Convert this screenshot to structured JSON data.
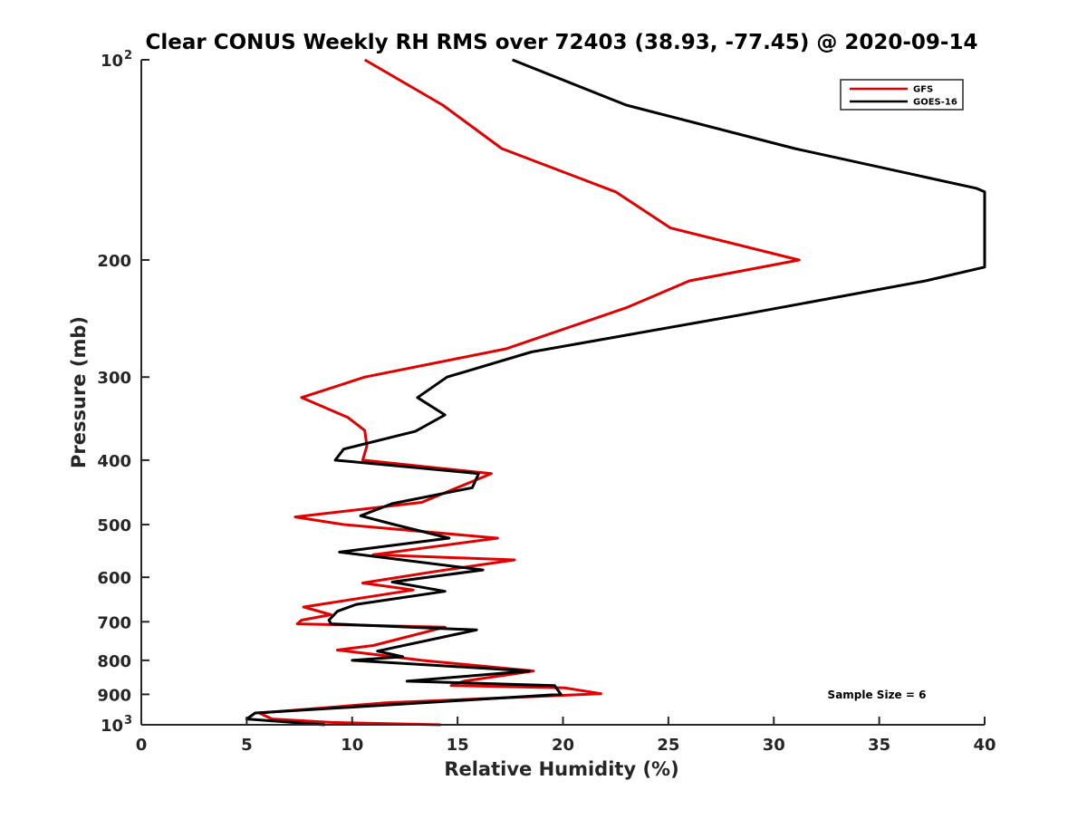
{
  "chart_data": {
    "type": "line",
    "title": "Clear CONUS Weekly RH RMS over 72403 (38.93, -77.45) @ 2020-09-14",
    "xlabel": "Relative Humidity (%)",
    "ylabel": "Pressure (mb)",
    "xlim": [
      0,
      40
    ],
    "ylim": [
      100,
      1000
    ],
    "y_scale": "log",
    "y_reversed": true,
    "x_ticks": [
      {
        "value": 0,
        "label": "0"
      },
      {
        "value": 5,
        "label": "5"
      },
      {
        "value": 10,
        "label": "10"
      },
      {
        "value": 15,
        "label": "15"
      },
      {
        "value": 20,
        "label": "20"
      },
      {
        "value": 25,
        "label": "25"
      },
      {
        "value": 30,
        "label": "30"
      },
      {
        "value": 35,
        "label": "35"
      },
      {
        "value": 40,
        "label": "40"
      }
    ],
    "y_ticks": [
      {
        "value": 100,
        "label": "10",
        "exp": "2"
      },
      {
        "value": 200,
        "label": "200"
      },
      {
        "value": 300,
        "label": "300"
      },
      {
        "value": 400,
        "label": "400"
      },
      {
        "value": 500,
        "label": "500"
      },
      {
        "value": 600,
        "label": "600"
      },
      {
        "value": 700,
        "label": "700"
      },
      {
        "value": 800,
        "label": "800"
      },
      {
        "value": 900,
        "label": "900"
      },
      {
        "value": 1000,
        "label": "10",
        "exp": "3"
      }
    ],
    "grid": false,
    "legend_position": "top-right",
    "annotation": "Sample Size = 6",
    "series": [
      {
        "name": "GFS",
        "color": "#e00000",
        "points": [
          [
            10.6,
            100
          ],
          [
            14.3,
            117
          ],
          [
            17.1,
            136
          ],
          [
            22.5,
            158
          ],
          [
            25.1,
            179
          ],
          [
            31.2,
            200
          ],
          [
            26.0,
            215
          ],
          [
            23.0,
            236
          ],
          [
            17.3,
            272
          ],
          [
            10.6,
            300
          ],
          [
            7.6,
            322
          ],
          [
            9.8,
            345
          ],
          [
            10.6,
            361
          ],
          [
            10.7,
            381
          ],
          [
            10.5,
            400
          ],
          [
            16.6,
            419
          ],
          [
            13.3,
            463
          ],
          [
            7.3,
            487
          ],
          [
            9.6,
            500
          ],
          [
            16.9,
            524
          ],
          [
            11.0,
            555
          ],
          [
            17.7,
            565
          ],
          [
            13.8,
            589
          ],
          [
            10.5,
            612
          ],
          [
            12.9,
            627
          ],
          [
            7.7,
            665
          ],
          [
            9.0,
            683
          ],
          [
            7.6,
            696
          ],
          [
            7.4,
            705
          ],
          [
            14.4,
            713
          ],
          [
            11.0,
            760
          ],
          [
            9.3,
            772
          ],
          [
            11.2,
            785
          ],
          [
            13.3,
            800
          ],
          [
            18.6,
            830
          ],
          [
            15.3,
            860
          ],
          [
            14.7,
            873
          ],
          [
            20.1,
            880
          ],
          [
            21.8,
            898
          ],
          [
            11.6,
            927
          ],
          [
            5.6,
            960
          ],
          [
            6.2,
            980
          ],
          [
            9.0,
            992
          ],
          [
            14.2,
            1000
          ]
        ]
      },
      {
        "name": "GOES-16",
        "color": "#000000",
        "points": [
          [
            17.6,
            100
          ],
          [
            23.0,
            117
          ],
          [
            31.0,
            136
          ],
          [
            39.6,
            156
          ],
          [
            40.0,
            158
          ],
          [
            40.0,
            205
          ],
          [
            37.2,
            215
          ],
          [
            28.4,
            242
          ],
          [
            18.5,
            275
          ],
          [
            14.5,
            300
          ],
          [
            13.1,
            322
          ],
          [
            14.4,
            342
          ],
          [
            13.0,
            362
          ],
          [
            9.6,
            385
          ],
          [
            9.2,
            400
          ],
          [
            16.0,
            419
          ],
          [
            15.7,
            440
          ],
          [
            11.9,
            465
          ],
          [
            10.4,
            485
          ],
          [
            12.0,
            500
          ],
          [
            14.6,
            524
          ],
          [
            9.4,
            550
          ],
          [
            16.2,
            585
          ],
          [
            11.9,
            610
          ],
          [
            14.4,
            630
          ],
          [
            10.2,
            659
          ],
          [
            9.3,
            675
          ],
          [
            8.9,
            696
          ],
          [
            9.0,
            705
          ],
          [
            15.9,
            720
          ],
          [
            11.2,
            775
          ],
          [
            12.4,
            790
          ],
          [
            10.0,
            800
          ],
          [
            18.4,
            830
          ],
          [
            12.6,
            860
          ],
          [
            19.6,
            873
          ],
          [
            19.9,
            900
          ],
          [
            5.4,
            960
          ],
          [
            5.0,
            980
          ],
          [
            8.7,
            1000
          ]
        ]
      }
    ]
  }
}
